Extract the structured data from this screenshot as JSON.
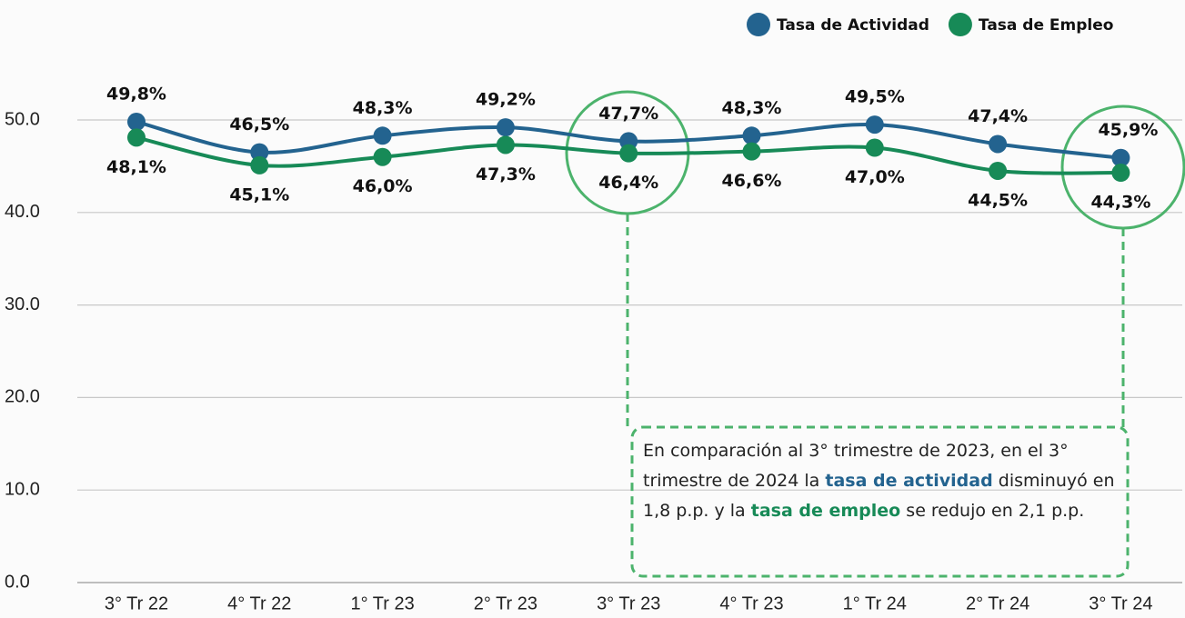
{
  "chart_data": {
    "type": "line",
    "categories": [
      "3° Tr 22",
      "4° Tr 22",
      "1° Tr 23",
      "2° Tr 23",
      "3° Tr 23",
      "4° Tr 23",
      "1° Tr 24",
      "2° Tr 24",
      "3° Tr 24"
    ],
    "series": [
      {
        "name": "Tasa de Actividad",
        "color": "#23638f",
        "values": [
          49.8,
          46.5,
          48.3,
          49.2,
          47.7,
          48.3,
          49.5,
          47.4,
          45.9
        ],
        "value_labels": [
          "49,8%",
          "46,5%",
          "48,3%",
          "49,2%",
          "47,7%",
          "48,3%",
          "49,5%",
          "47,4%",
          "45,9%"
        ]
      },
      {
        "name": "Tasa de Empleo",
        "color": "#178a57",
        "values": [
          48.1,
          45.1,
          46.0,
          47.3,
          46.4,
          46.6,
          47.0,
          44.5,
          44.3
        ],
        "value_labels": [
          "48,1%",
          "45,1%",
          "46,0%",
          "47,3%",
          "46,4%",
          "46,6%",
          "47,0%",
          "44,5%",
          "44,3%"
        ]
      }
    ],
    "ylim": [
      0,
      50
    ],
    "yticks": [
      {
        "value": 0,
        "label": "0.0"
      },
      {
        "value": 10,
        "label": "10.0"
      },
      {
        "value": 20,
        "label": "20.0"
      },
      {
        "value": 30,
        "label": "30.0"
      },
      {
        "value": 40,
        "label": "40.0"
      },
      {
        "value": 50,
        "label": "50.0"
      }
    ],
    "grid": true,
    "legend": "top-right",
    "annotation": [
      {
        "text": "En comparación al 3° trimestre de 2023, en el 3° trimestre de 2024 la "
      },
      {
        "text": "tasa de actividad",
        "color": "#23638f"
      },
      {
        "text": " disminuyó en 1,8 p.p. y la "
      },
      {
        "text": "tasa de empleo",
        "color": "#178a57"
      },
      {
        "text": " se redujo en 2,1 p.p."
      }
    ]
  }
}
